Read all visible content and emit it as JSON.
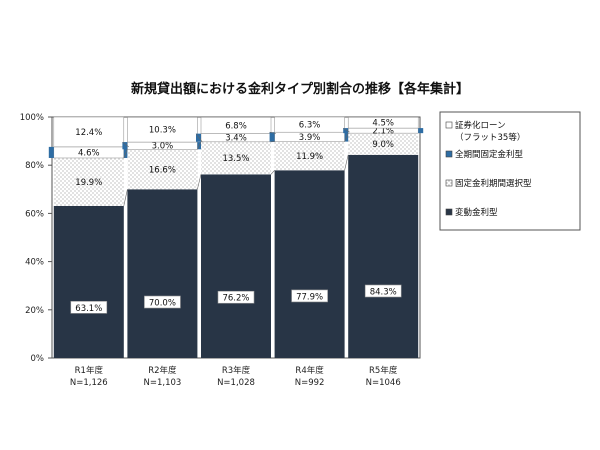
{
  "chart_data": {
    "type": "bar",
    "stacked": true,
    "percent": true,
    "title": "新規貸出額における金利タイプ別割合の推移【各年集計】",
    "categories": [
      "R1年度",
      "R2年度",
      "R3年度",
      "R4年度",
      "R5年度"
    ],
    "sample_sizes": [
      "N=1,126",
      "N=1,103",
      "N=1,028",
      "N=992",
      "N=1046"
    ],
    "ylim": [
      0,
      100
    ],
    "yticks": [
      "0%",
      "20%",
      "40%",
      "60%",
      "80%",
      "100%"
    ],
    "series": [
      {
        "name": "変動金利型",
        "values": [
          63.1,
          70.0,
          76.2,
          77.9,
          84.3
        ],
        "labels": [
          "63.1%",
          "70.0%",
          "76.2%",
          "77.9%",
          "84.3%"
        ],
        "color": "#283546"
      },
      {
        "name": "固定金利期間選択型",
        "values": [
          19.9,
          16.6,
          13.5,
          11.9,
          9.0
        ],
        "labels": [
          "19.9%",
          "16.6%",
          "13.5%",
          "11.9%",
          "9.0%"
        ],
        "color": "#dcdcdc"
      },
      {
        "name": "全期間固定金利型",
        "values": [
          4.6,
          3.0,
          3.4,
          3.9,
          2.1
        ],
        "labels": [
          "4.6%",
          "3.0%",
          "3.4%",
          "3.9%",
          "2.1%"
        ],
        "color": "#2e6da4"
      },
      {
        "name": "証券化ローン（フラット35等）",
        "values": [
          12.4,
          10.3,
          6.8,
          6.3,
          4.5
        ],
        "labels": [
          "12.4%",
          "10.3%",
          "6.8%",
          "6.3%",
          "4.5%"
        ],
        "color": "#ffffff"
      }
    ],
    "legend_order": [
      "証券化ローン（フラット35等）",
      "全期間固定金利型",
      "固定金利期間選択型",
      "変動金利型"
    ],
    "legend_position": "right",
    "legend": {
      "items": [
        {
          "lines": [
            "証券化ローン",
            "（フラット35等）"
          ]
        },
        {
          "lines": [
            "全期間固定金利型"
          ]
        },
        {
          "lines": [
            "固定金利期間選択型"
          ]
        },
        {
          "lines": [
            "変動金利型"
          ]
        }
      ]
    }
  }
}
